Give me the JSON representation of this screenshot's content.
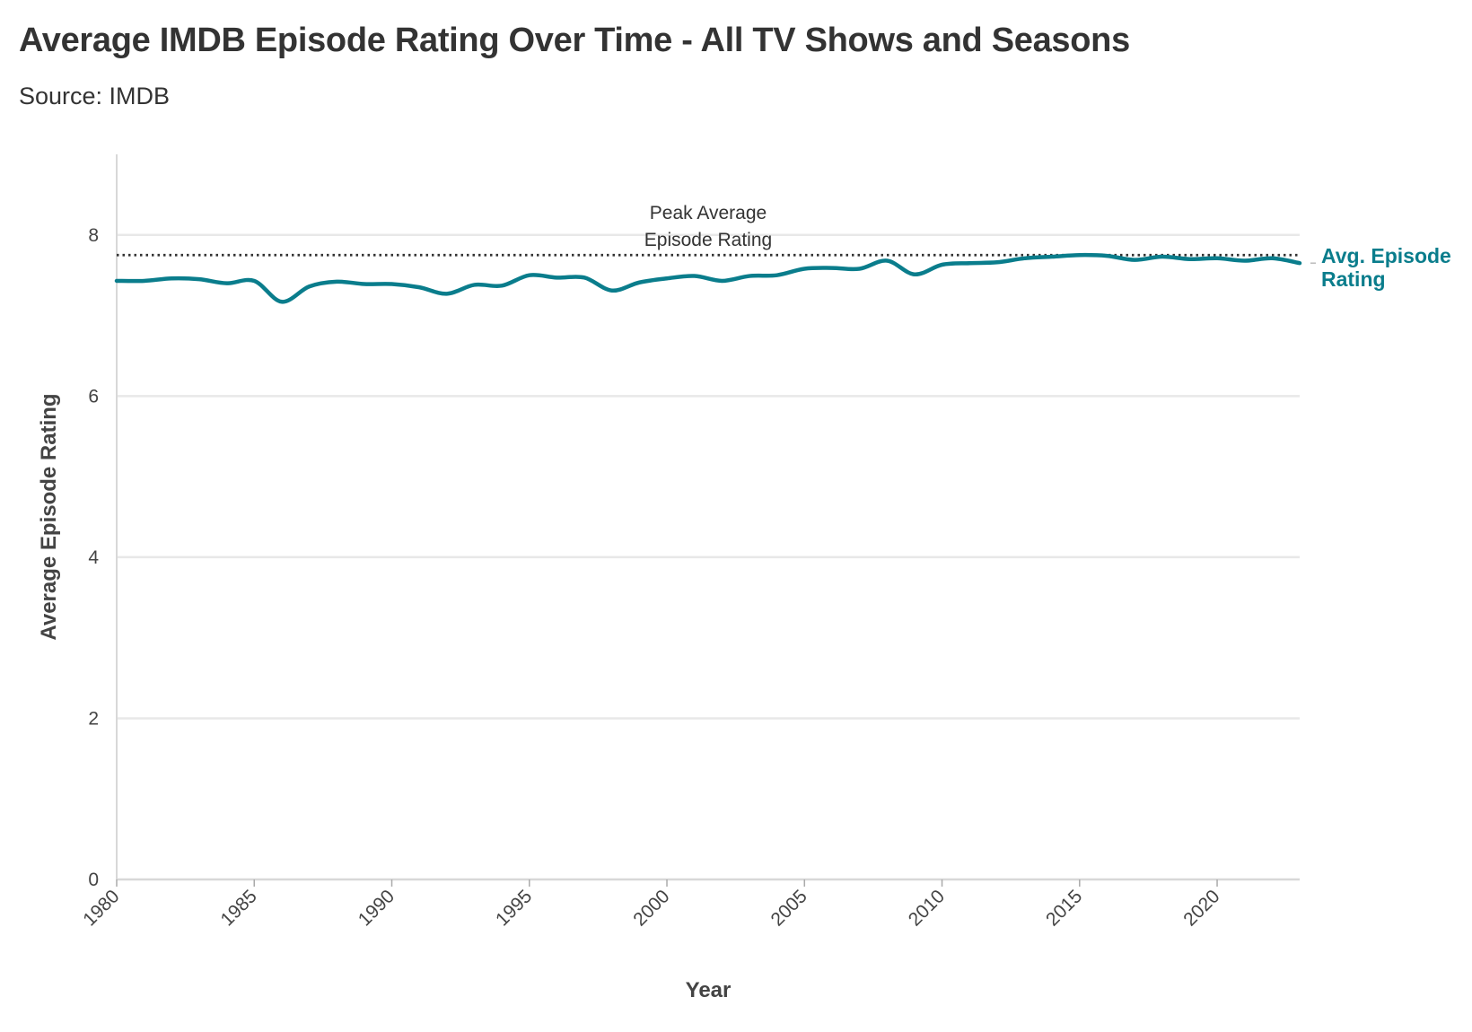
{
  "title": "Average IMDB Episode Rating Over Time - All TV Shows and Seasons",
  "subtitle": "Source: IMDB",
  "colors": {
    "series": "#0a7d8c",
    "grid": "#e8e8e8",
    "reference_line": "#333333"
  },
  "chart_data": {
    "type": "line",
    "xlabel": "Year",
    "ylabel": "Average Episode Rating",
    "xlim": [
      1980,
      2023
    ],
    "ylim": [
      0,
      9
    ],
    "x_ticks": [
      "1980",
      "1985",
      "1990",
      "1995",
      "2000",
      "2005",
      "2010",
      "2015",
      "2020"
    ],
    "y_ticks": [
      "0",
      "2",
      "4",
      "6",
      "8"
    ],
    "grid": "horizontal",
    "series": [
      {
        "name": "Avg. Episode Rating",
        "x": [
          1980,
          1981,
          1982,
          1983,
          1984,
          1985,
          1986,
          1987,
          1988,
          1989,
          1990,
          1991,
          1992,
          1993,
          1994,
          1995,
          1996,
          1997,
          1998,
          1999,
          2000,
          2001,
          2002,
          2003,
          2004,
          2005,
          2006,
          2007,
          2008,
          2009,
          2010,
          2011,
          2012,
          2013,
          2014,
          2015,
          2016,
          2017,
          2018,
          2019,
          2020,
          2021,
          2022,
          2023
        ],
        "y": [
          7.43,
          7.43,
          7.46,
          7.45,
          7.4,
          7.43,
          7.17,
          7.36,
          7.42,
          7.39,
          7.39,
          7.35,
          7.27,
          7.38,
          7.37,
          7.5,
          7.47,
          7.47,
          7.31,
          7.41,
          7.46,
          7.49,
          7.43,
          7.49,
          7.5,
          7.58,
          7.59,
          7.58,
          7.68,
          7.51,
          7.63,
          7.65,
          7.66,
          7.71,
          7.73,
          7.75,
          7.74,
          7.69,
          7.73,
          7.7,
          7.71,
          7.68,
          7.71,
          7.65
        ]
      }
    ],
    "reference_line": {
      "y": 7.75,
      "style": "dotted",
      "label_lines": [
        "Peak Average",
        "Episode Rating"
      ]
    },
    "series_end_label_lines": [
      "Avg. Episode",
      "Rating"
    ]
  }
}
